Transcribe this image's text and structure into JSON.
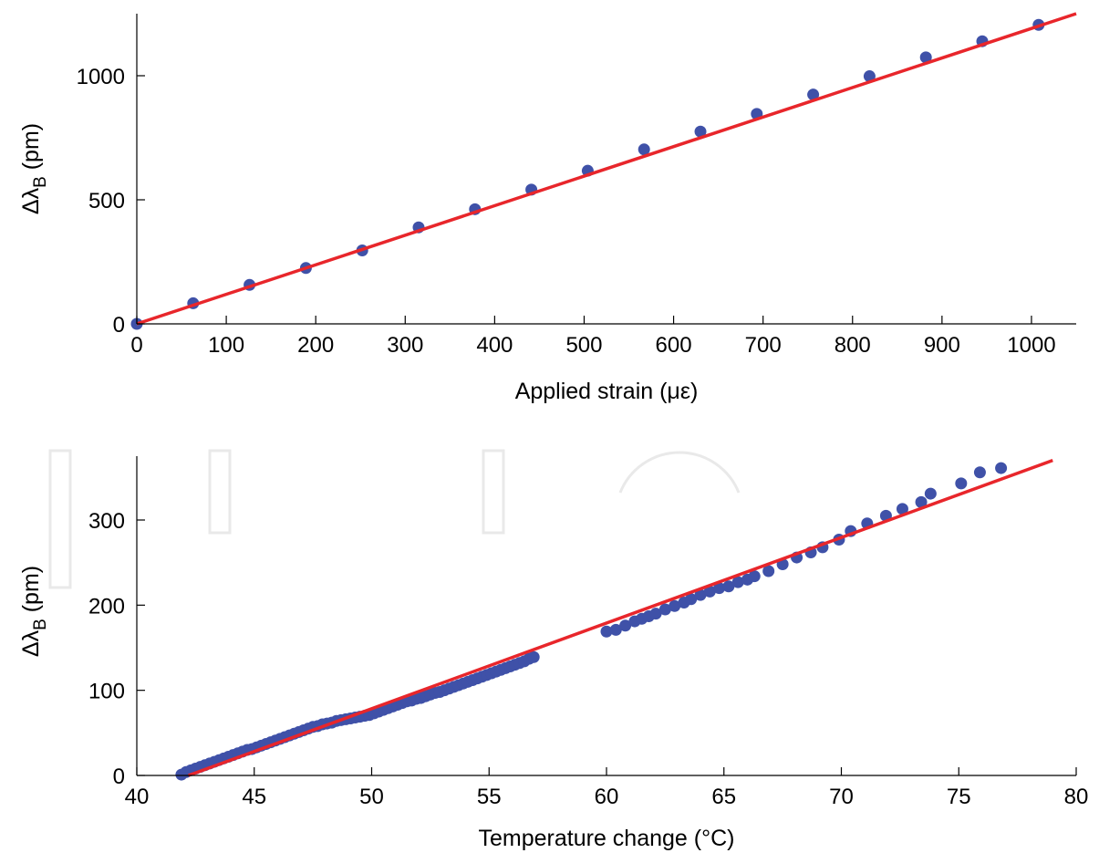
{
  "chart_data": [
    {
      "type": "scatter",
      "xlabel": "Applied strain (με)",
      "ylabel": "Δλ_B (pm)",
      "ylabel_main": "Δλ",
      "ylabel_sub": "B",
      "ylabel_unit": " (pm)",
      "xlim": [
        0,
        1050
      ],
      "ylim": [
        0,
        1250
      ],
      "xticks": [
        0,
        100,
        200,
        300,
        400,
        500,
        600,
        700,
        800,
        900,
        1000
      ],
      "yticks": [
        0,
        500,
        1000
      ],
      "grid": false,
      "colors": {
        "points": "#3f51a8",
        "fit": "#e8262b"
      },
      "series": [
        {
          "kind": "points",
          "x": [
            0,
            63,
            126,
            189,
            252,
            315,
            378,
            441,
            504,
            567,
            630,
            693,
            756,
            819,
            882,
            945,
            1008
          ],
          "y": [
            0,
            83,
            157,
            225,
            296,
            389,
            462,
            541,
            617,
            703,
            775,
            846,
            924,
            998,
            1074,
            1139,
            1205
          ]
        },
        {
          "kind": "fit-line",
          "x": [
            0,
            1050
          ],
          "y": [
            0,
            1250
          ]
        }
      ]
    },
    {
      "type": "scatter",
      "xlabel": "Temperature change (°C)",
      "ylabel": "Δλ_B (pm)",
      "ylabel_main": "Δλ",
      "ylabel_sub": "B",
      "ylabel_unit": " (pm)",
      "xlim": [
        40,
        80
      ],
      "ylim": [
        0,
        375
      ],
      "xticks": [
        40,
        45,
        50,
        55,
        60,
        65,
        70,
        75,
        80
      ],
      "yticks": [
        0,
        100,
        200,
        300
      ],
      "grid": false,
      "colors": {
        "points": "#3f51a8",
        "fit": "#e8262b"
      },
      "series": [
        {
          "kind": "points",
          "x": [
            41.9,
            42.1,
            42.3,
            42.5,
            42.7,
            42.9,
            43.1,
            43.3,
            43.5,
            43.7,
            43.9,
            44.1,
            44.3,
            44.5,
            44.7,
            44.9,
            45.1,
            45.3,
            45.5,
            45.7,
            45.9,
            46.1,
            46.3,
            46.5,
            46.7,
            46.9,
            47.1,
            47.3,
            47.5,
            47.7,
            47.9,
            48.1,
            48.3,
            48.5,
            48.7,
            48.9,
            49.1,
            49.3,
            49.5,
            49.7,
            49.9,
            50.1,
            50.3,
            50.5,
            50.7,
            50.9,
            51.1,
            51.3,
            51.5,
            51.7,
            51.9,
            52.1,
            52.3,
            52.5,
            52.7,
            52.9,
            53.1,
            53.3,
            53.5,
            53.7,
            53.9,
            54.1,
            54.3,
            54.5,
            54.7,
            54.9,
            55.1,
            55.3,
            55.5,
            55.7,
            55.9,
            56.1,
            56.3,
            56.5,
            56.7,
            56.9,
            60.0,
            60.4,
            60.8,
            61.2,
            61.5,
            61.8,
            62.1,
            62.5,
            62.9,
            63.3,
            63.6,
            64.0,
            64.4,
            64.8,
            65.2,
            65.6,
            66.0,
            66.3,
            66.9,
            67.5,
            68.1,
            68.7,
            69.2,
            69.9,
            70.4,
            71.1,
            71.9,
            72.6,
            73.4,
            73.8,
            75.1,
            75.9,
            76.8
          ],
          "y": [
            1,
            4,
            6,
            8,
            10,
            12,
            14,
            16,
            18,
            20,
            22,
            24,
            26,
            28,
            30,
            31,
            33,
            35,
            37,
            39,
            41,
            43,
            45,
            47,
            49,
            51,
            53,
            55,
            57,
            58,
            60,
            61,
            62,
            64,
            65,
            66,
            67,
            68,
            69,
            70,
            71,
            73,
            75,
            77,
            79,
            81,
            83,
            85,
            87,
            88,
            90,
            91,
            93,
            95,
            97,
            98,
            100,
            102,
            104,
            106,
            108,
            110,
            112,
            114,
            116,
            118,
            120,
            122,
            124,
            126,
            128,
            130,
            132,
            134,
            137,
            139,
            169,
            171,
            176,
            181,
            184,
            187,
            190,
            195,
            199,
            203,
            207,
            212,
            216,
            220,
            222,
            227,
            230,
            234,
            240,
            248,
            256,
            262,
            268,
            277,
            287,
            296,
            305,
            313,
            321,
            331,
            343,
            356,
            361
          ]
        },
        {
          "kind": "fit-line",
          "x": [
            42.2,
            79.0
          ],
          "y": [
            0,
            370
          ]
        }
      ]
    }
  ]
}
